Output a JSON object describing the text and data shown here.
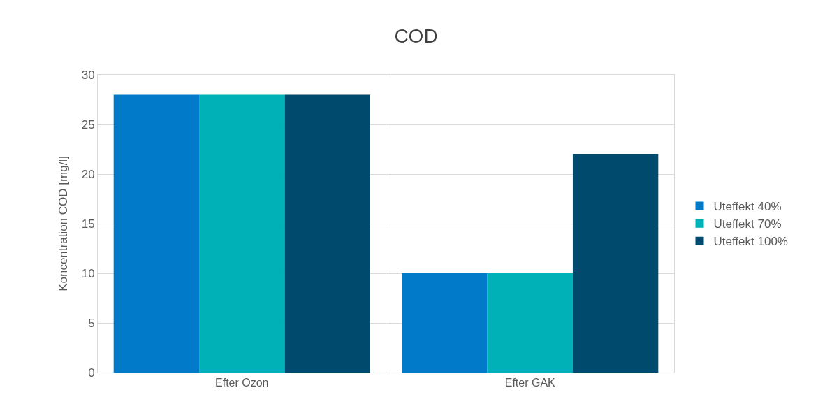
{
  "chart_data": {
    "type": "bar",
    "title": "COD",
    "ylabel": "Koncentration COD [mg/l]",
    "categories": [
      "Efter Ozon",
      "Efter GAK"
    ],
    "series": [
      {
        "name": "Uteffekt 40%",
        "color": "#007ac9",
        "values": [
          28,
          10
        ]
      },
      {
        "name": "Uteffekt 70%",
        "color": "#00b1b7",
        "values": [
          28,
          10
        ]
      },
      {
        "name": "Uteffekt 100%",
        "color": "#004a6d",
        "values": [
          28,
          22
        ]
      }
    ],
    "ylim": [
      0,
      30
    ],
    "yticks": [
      0,
      5,
      10,
      15,
      20,
      25,
      30
    ],
    "grid": true,
    "legend": "right"
  }
}
